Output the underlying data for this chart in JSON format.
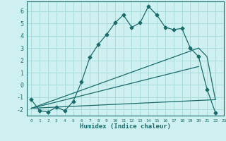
{
  "title": "",
  "xlabel": "Humidex (Indice chaleur)",
  "bg_color": "#cff0f0",
  "grid_color": "#aadddd",
  "line_color": "#1a6b6b",
  "xlim": [
    -0.5,
    23
  ],
  "ylim": [
    -2.5,
    6.8
  ],
  "yticks": [
    -2,
    -1,
    0,
    1,
    2,
    3,
    4,
    5,
    6
  ],
  "xticks": [
    0,
    1,
    2,
    3,
    4,
    5,
    6,
    7,
    8,
    9,
    10,
    11,
    12,
    13,
    14,
    15,
    16,
    17,
    18,
    19,
    20,
    21,
    22,
    23
  ],
  "xtick_labels": [
    "0",
    "1",
    "2",
    "3",
    "4",
    "5",
    "6",
    "7",
    "8",
    "9",
    "10",
    "11",
    "12",
    "13",
    "14",
    "15",
    "16",
    "17",
    "18",
    "19",
    "20",
    "21",
    "22",
    "23"
  ],
  "line1_x": [
    0,
    1,
    2,
    3,
    4,
    5,
    6,
    7,
    8,
    9,
    10,
    11,
    12,
    13,
    14,
    15,
    16,
    17,
    18,
    19,
    20,
    21,
    22
  ],
  "line1_y": [
    -1.2,
    -2.1,
    -2.2,
    -1.8,
    -2.1,
    -1.35,
    0.25,
    2.25,
    3.3,
    4.1,
    5.05,
    5.7,
    4.7,
    5.05,
    6.4,
    5.7,
    4.7,
    4.5,
    4.6,
    3.0,
    2.3,
    -0.35,
    -2.25
  ],
  "line2_x": [
    0,
    20,
    21,
    22
  ],
  "line2_y": [
    -1.9,
    3.0,
    2.3,
    -1.2
  ],
  "line3_x": [
    0,
    22
  ],
  "line3_y": [
    -1.9,
    -1.2
  ],
  "line4_x": [
    0,
    20
  ],
  "line4_y": [
    -1.9,
    1.5
  ]
}
